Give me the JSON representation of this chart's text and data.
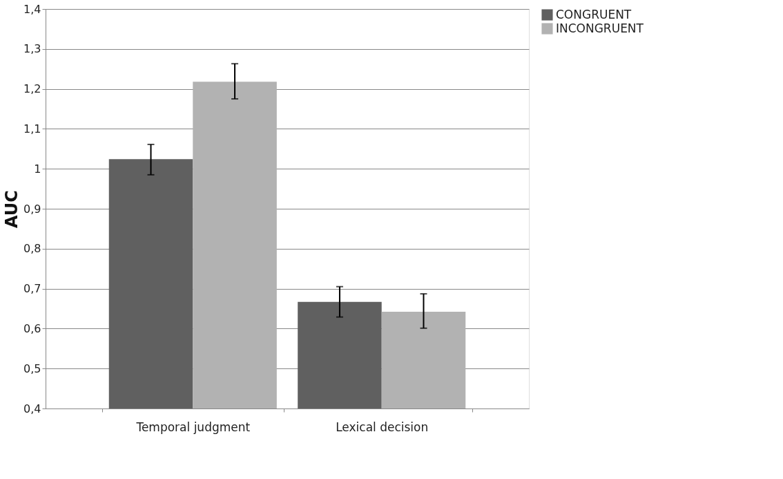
{
  "chart_data": {
    "type": "bar",
    "ylabel": "AUC",
    "categories": [
      "Temporal judgment",
      "Lexical decision"
    ],
    "series": [
      {
        "name": "CONGRUENT",
        "color": "#606060",
        "values": [
          1.024,
          0.667
        ],
        "errors": [
          [
            0.985,
            1.061
          ],
          [
            0.629,
            0.705
          ]
        ]
      },
      {
        "name": "INCONGRUENT",
        "color": "#b2b2b2",
        "values": [
          1.218,
          0.642
        ],
        "errors": [
          [
            1.175,
            1.263
          ],
          [
            0.601,
            0.687
          ]
        ]
      }
    ],
    "ylim": [
      0.4,
      1.4
    ],
    "yticks": [
      {
        "value": 0.4,
        "label": "0,4"
      },
      {
        "value": 0.5,
        "label": "0,5"
      },
      {
        "value": 0.6,
        "label": "0,6"
      },
      {
        "value": 0.7,
        "label": "0,7"
      },
      {
        "value": 0.8,
        "label": "0,8"
      },
      {
        "value": 0.9,
        "label": "0,9"
      },
      1,
      {
        "value": 1.1,
        "label": "1,1"
      },
      {
        "value": 1.2,
        "label": "1,2"
      },
      {
        "value": 1.3,
        "label": "1,3"
      },
      {
        "value": 1.4,
        "label": "1,4"
      }
    ],
    "grid": "y",
    "legend": "right"
  }
}
